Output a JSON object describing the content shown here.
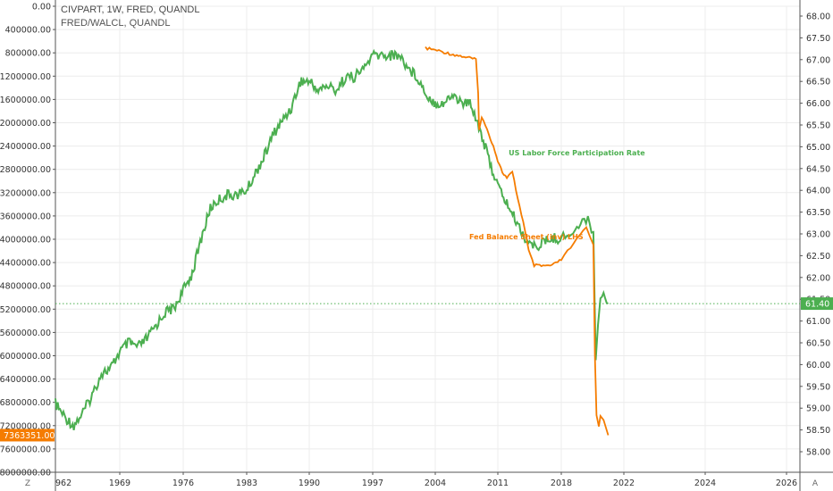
{
  "legend": {
    "line1": "CIVPART, 1W, FRED, QUANDL",
    "line2": "FRED/WALCL, QUANDL"
  },
  "corner": {
    "left": "Z",
    "right": "A"
  },
  "colors": {
    "participation": "#4caf50",
    "balance": "#f57c00",
    "grid": "#ececec",
    "axis": "#555555"
  },
  "chart_data": {
    "type": "line",
    "x_ticks": [
      "962",
      "1969",
      "1976",
      "1983",
      "1990",
      "1997",
      "2004",
      "2011",
      "2018",
      "2022",
      "2024",
      "2026"
    ],
    "y_left_ticks": [
      "0.00",
      "400000.00",
      "800000.00",
      "1200000.00",
      "1600000.00",
      "2000000.00",
      "2400000.00",
      "2800000.00",
      "3200000.00",
      "3600000.00",
      "4000000.00",
      "4400000.00",
      "4800000.00",
      "5200000.00",
      "5600000.00",
      "6000000.00",
      "6400000.00",
      "6800000.00",
      "7200000.00",
      "7600000.00",
      "8000000.00"
    ],
    "y_right_ticks": [
      "68.00",
      "67.50",
      "67.00",
      "66.50",
      "66.00",
      "65.50",
      "65.00",
      "64.50",
      "64.00",
      "63.50",
      "63.00",
      "62.50",
      "62.00",
      "61.50",
      "61.00",
      "60.50",
      "60.00",
      "59.50",
      "59.00",
      "58.50",
      "58.00"
    ],
    "y_left_range": [
      0,
      8000000
    ],
    "y_left_inverted": true,
    "y_right_range": [
      58.0,
      68.0
    ],
    "current_left_label": "7363351.00",
    "current_right_label": "61.40",
    "current_right_value": 61.4,
    "annotations": [
      {
        "text": "US Labor Force Participation Rate",
        "series": 0,
        "x": 2012.2,
        "y": 64.8
      },
      {
        "text": "Fed Balance Sheet (inv) LHS",
        "series": 1,
        "x": 2007.8,
        "y": 4000000
      }
    ],
    "series": [
      {
        "axis": "right",
        "points": [
          [
            1962,
            59.1
          ],
          [
            1963,
            58.8
          ],
          [
            1964,
            58.6
          ],
          [
            1965,
            58.9
          ],
          [
            1966,
            59.3
          ],
          [
            1967,
            59.8
          ],
          [
            1968,
            59.9
          ],
          [
            1969,
            60.3
          ],
          [
            1970,
            60.5
          ],
          [
            1971,
            60.4
          ],
          [
            1972,
            60.6
          ],
          [
            1973,
            60.9
          ],
          [
            1974,
            61.2
          ],
          [
            1975,
            61.3
          ],
          [
            1976,
            61.7
          ],
          [
            1977,
            62.1
          ],
          [
            1978,
            62.9
          ],
          [
            1979,
            63.6
          ],
          [
            1980,
            63.8
          ],
          [
            1981,
            63.9
          ],
          [
            1982,
            63.9
          ],
          [
            1983,
            64.0
          ],
          [
            1984,
            64.4
          ],
          [
            1985,
            64.8
          ],
          [
            1986,
            65.3
          ],
          [
            1987,
            65.6
          ],
          [
            1988,
            65.9
          ],
          [
            1989,
            66.5
          ],
          [
            1990,
            66.5
          ],
          [
            1991,
            66.3
          ],
          [
            1992,
            66.4
          ],
          [
            1993,
            66.3
          ],
          [
            1994,
            66.6
          ],
          [
            1995,
            66.6
          ],
          [
            1996,
            66.8
          ],
          [
            1997,
            67.1
          ],
          [
            1998,
            67.1
          ],
          [
            1999,
            67.1
          ],
          [
            2000,
            67.1
          ],
          [
            2001,
            66.8
          ],
          [
            2002,
            66.6
          ],
          [
            2003,
            66.2
          ],
          [
            2004,
            66.0
          ],
          [
            2005,
            66.0
          ],
          [
            2006,
            66.2
          ],
          [
            2007,
            66.0
          ],
          [
            2008,
            66.0
          ],
          [
            2009,
            65.4
          ],
          [
            2010,
            64.7
          ],
          [
            2011,
            64.1
          ],
          [
            2012,
            63.7
          ],
          [
            2013,
            63.3
          ],
          [
            2014,
            62.9
          ],
          [
            2015,
            62.7
          ],
          [
            2016,
            62.8
          ],
          [
            2017,
            62.9
          ],
          [
            2018,
            62.9
          ],
          [
            2019,
            63.1
          ],
          [
            2019.7,
            63.4
          ],
          [
            2020.05,
            63.0
          ],
          [
            2020.2,
            60.2
          ],
          [
            2020.35,
            60.8
          ],
          [
            2020.5,
            61.5
          ],
          [
            2020.7,
            61.7
          ],
          [
            2020.9,
            61.5
          ],
          [
            2021,
            61.4
          ]
        ]
      },
      {
        "axis": "left",
        "points": [
          [
            2002.9,
            720000
          ],
          [
            2004,
            750000
          ],
          [
            2005,
            790000
          ],
          [
            2006,
            830000
          ],
          [
            2007,
            860000
          ],
          [
            2008,
            890000
          ],
          [
            2008.55,
            920000
          ],
          [
            2008.8,
            1500000
          ],
          [
            2008.9,
            2100000
          ],
          [
            2009.2,
            1900000
          ],
          [
            2009.6,
            2050000
          ],
          [
            2010,
            2200000
          ],
          [
            2010.5,
            2400000
          ],
          [
            2011,
            2650000
          ],
          [
            2011.5,
            2850000
          ],
          [
            2012,
            2950000
          ],
          [
            2012.6,
            2850000
          ],
          [
            2013.2,
            3300000
          ],
          [
            2013.8,
            3700000
          ],
          [
            2014.4,
            4200000
          ],
          [
            2015,
            4450000
          ],
          [
            2016,
            4460000
          ],
          [
            2017,
            4450000
          ],
          [
            2018,
            4350000
          ],
          [
            2019,
            4000000
          ],
          [
            2019.6,
            3800000
          ],
          [
            2020.05,
            4100000
          ],
          [
            2020.15,
            6000000
          ],
          [
            2020.25,
            7000000
          ],
          [
            2020.4,
            7200000
          ],
          [
            2020.5,
            7050000
          ],
          [
            2020.7,
            7100000
          ],
          [
            2021,
            7363351
          ]
        ]
      }
    ]
  }
}
